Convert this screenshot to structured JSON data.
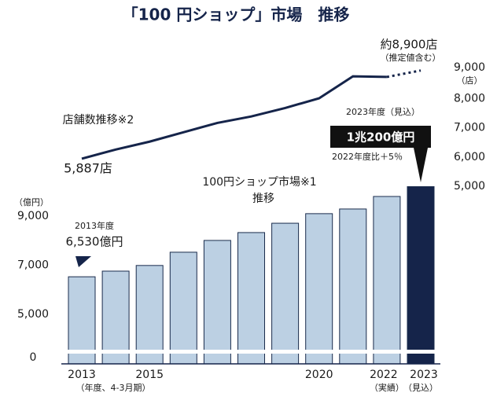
{
  "chart_data": {
    "type": "bar-line",
    "title": "「100 円ショップ」市場　推移",
    "categories": [
      "2013",
      null,
      "2015",
      null,
      null,
      null,
      null,
      "2020",
      null,
      "2022",
      "2023"
    ],
    "category_notes": [
      "（年度、4-3月期）",
      null,
      null,
      null,
      null,
      null,
      null,
      null,
      null,
      "（実績）",
      "（見込）"
    ],
    "series": [
      {
        "name": "100円ショップ市場※1",
        "type": "bar",
        "axis": "y",
        "values": [
          6530,
          6760,
          6990,
          7530,
          8010,
          8330,
          8710,
          9100,
          9290,
          9800,
          10200
        ],
        "value_labels": [
          "6,530億円",
          null,
          null,
          null,
          null,
          null,
          null,
          null,
          null,
          null,
          "1兆200億円"
        ],
        "colors": [
          "#bcd0e3",
          "#bcd0e3",
          "#bcd0e3",
          "#bcd0e3",
          "#bcd0e3",
          "#bcd0e3",
          "#bcd0e3",
          "#bcd0e3",
          "#bcd0e3",
          "#bcd0e3",
          "#15244a"
        ]
      },
      {
        "name": "店舗数推移※2",
        "type": "line",
        "axis": "y2",
        "color": "#15244a",
        "dash_last_segment": true,
        "values": [
          5887,
          6200,
          6470,
          6790,
          7110,
          7330,
          7620,
          7950,
          8700,
          8680,
          8900
        ],
        "value_labels": [
          "5,887店",
          null,
          null,
          null,
          null,
          null,
          null,
          null,
          null,
          null,
          "約8,900店"
        ]
      }
    ],
    "ylim": [
      0,
      10500
    ],
    "yticks": [
      0,
      {
        "value": 5000,
        "label": "5,000"
      },
      {
        "value": 7000,
        "label": "7,000"
      },
      {
        "value": 9000,
        "label": "9,000"
      }
    ],
    "y_axis_break": true,
    "y_unit": "（億円）",
    "y2lim": [
      5000,
      9000
    ],
    "y2ticks": [
      {
        "value": 5000,
        "label": "5,000"
      },
      {
        "value": 6000,
        "label": "6,000"
      },
      {
        "value": 7000,
        "label": "7,000"
      },
      {
        "value": 8000,
        "label": "8,000"
      },
      {
        "value": 9000,
        "label": "9,000"
      }
    ],
    "y2_unit": "（店）",
    "annotations": {
      "bar_name_line2": "推移",
      "first_bar_year": "2013年度",
      "last_bar_year": "2023年度（見込）",
      "last_bar_growth": "2022年度比＋5％",
      "line_last_note": "（推定値含む）"
    }
  }
}
